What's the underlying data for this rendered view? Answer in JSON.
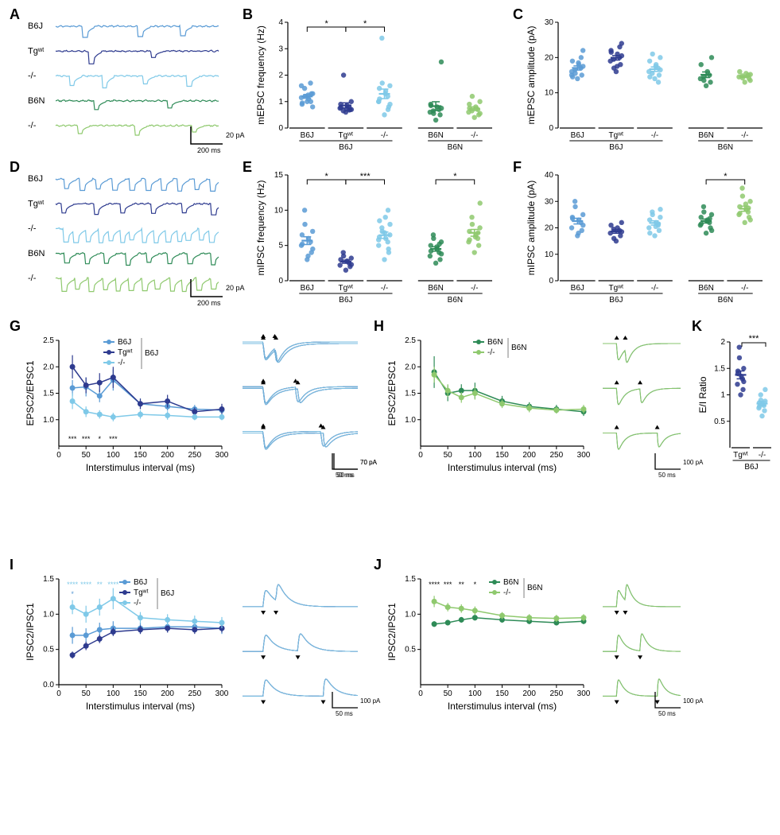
{
  "colors": {
    "b6j": "#5a9bd5",
    "tgwt": "#2e3b8f",
    "ko_j": "#7fc9e8",
    "b6n": "#2e8b57",
    "ko_n": "#8fc96e",
    "axis": "#000000",
    "bg": "#ffffff"
  },
  "panel_labels": {
    "A": "A",
    "B": "B",
    "C": "C",
    "D": "D",
    "E": "E",
    "F": "F",
    "G": "G",
    "H": "H",
    "I": "I",
    "J": "J",
    "K": "K"
  },
  "traces": {
    "labelsJ": [
      "B6J",
      "Tgʷᵗ",
      "-/-"
    ],
    "labelsN": [
      "B6N",
      "-/-"
    ],
    "scale_y_A": "20 pA",
    "scale_x_A": "200 ms",
    "scale_y_D": "20 pA",
    "scale_x_D": "200 ms"
  },
  "panelB": {
    "ylabel": "mEPSC frequency (Hz)",
    "ylim": [
      0,
      4
    ],
    "yticks": [
      0,
      1,
      2,
      3,
      4
    ],
    "groups_j": [
      "B6J",
      "Tgʷᵗ",
      "-/-"
    ],
    "groups_n": [
      "B6N",
      "-/-"
    ],
    "group_j_label": "B6J",
    "group_n_label": "B6N",
    "data": {
      "B6J_j": [
        1.0,
        1.3,
        1.6,
        1.7,
        1.1,
        0.9,
        0.8,
        1.2,
        1.5,
        1.3,
        0.95,
        1.25,
        1.0,
        1.15
      ],
      "Tgwt_j": [
        0.6,
        0.7,
        0.75,
        0.8,
        0.85,
        0.9,
        1.0,
        2.0,
        0.65,
        0.7,
        0.78,
        0.72,
        0.68
      ],
      "KO_j": [
        0.5,
        0.8,
        1.0,
        1.2,
        1.4,
        1.5,
        1.6,
        1.7,
        3.4,
        0.9,
        1.1,
        1.3,
        0.7,
        1.0
      ],
      "B6N_n": [
        0.3,
        0.5,
        0.6,
        0.7,
        0.8,
        0.9,
        2.5,
        0.55,
        0.65,
        0.75,
        0.85
      ],
      "KO_n": [
        0.4,
        0.5,
        0.6,
        0.7,
        0.8,
        0.9,
        1.0,
        1.2,
        0.65,
        0.55,
        0.75
      ]
    },
    "sig": [
      [
        "B6J_j",
        "Tgwt_j",
        "*"
      ],
      [
        "Tgwt_j",
        "KO_j",
        "*"
      ]
    ]
  },
  "panelC": {
    "ylabel": "mEPSC amplitude (pA)",
    "ylim": [
      0,
      30
    ],
    "yticks": [
      0,
      10,
      20,
      30
    ],
    "data": {
      "B6J_j": [
        14,
        15,
        16,
        17,
        18,
        19,
        22,
        15.5,
        16.5,
        17.5,
        14.5,
        18.5,
        20,
        15
      ],
      "Tgwt_j": [
        16,
        18,
        19,
        20,
        21,
        22,
        24,
        17,
        19.5,
        20.5,
        21.5,
        17.5,
        23
      ],
      "KO_j": [
        14,
        15,
        16,
        17,
        18,
        19,
        20,
        21,
        15.5,
        16.5,
        14.5,
        17.5,
        13
      ],
      "B6N_n": [
        12,
        13,
        14,
        15,
        16,
        18,
        20,
        13.5,
        14.5
      ],
      "KO_n": [
        13,
        14,
        14.5,
        15,
        15.5,
        16,
        13.5,
        14.2,
        14.8,
        15.2
      ]
    }
  },
  "panelE": {
    "ylabel": "mIPSC frequency (Hz)",
    "ylim": [
      0,
      15
    ],
    "yticks": [
      0,
      5,
      10,
      15
    ],
    "data": {
      "B6J_j": [
        3,
        4,
        5,
        5.5,
        6,
        6.5,
        7,
        8,
        10,
        4.5,
        5.2,
        3.5
      ],
      "Tgwt_j": [
        1.5,
        2,
        2.2,
        2.5,
        2.8,
        3,
        3.2,
        3.5,
        4,
        2.3
      ],
      "KO_j": [
        3,
        4,
        5,
        5.5,
        6,
        6.2,
        6.5,
        7,
        7.5,
        8,
        8.5,
        9,
        10,
        5.8,
        4.5,
        6.8
      ],
      "B6N_n": [
        2.5,
        3,
        3.5,
        4,
        4.5,
        5,
        5.5,
        6,
        6.5,
        3.8,
        4.2,
        4.8,
        5.2
      ],
      "KO_n": [
        4,
        5,
        5.5,
        6,
        6.5,
        7,
        7.5,
        8,
        9,
        11,
        5.8,
        6.2,
        6.8
      ]
    },
    "sig": [
      [
        "B6J_j",
        "Tgwt_j",
        "*"
      ],
      [
        "Tgwt_j",
        "KO_j",
        "***"
      ],
      [
        "B6N_n",
        "KO_n",
        "*"
      ]
    ]
  },
  "panelF": {
    "ylabel": "mIPSC amplitude (pA)",
    "ylim": [
      0,
      40
    ],
    "yticks": [
      0,
      10,
      20,
      30,
      40
    ],
    "data": {
      "B6J_j": [
        17,
        19,
        20,
        22,
        23,
        24,
        25,
        28,
        30,
        21,
        23.5,
        18
      ],
      "Tgwt_j": [
        15,
        17,
        18,
        19,
        20,
        21,
        22,
        16,
        19.5,
        18.5
      ],
      "KO_j": [
        17,
        19,
        20,
        21,
        22,
        23,
        24,
        25,
        26,
        27,
        18,
        20.5,
        21.5
      ],
      "B6N_n": [
        18,
        20,
        21,
        22,
        23,
        24,
        25,
        26,
        28,
        19,
        21.5,
        22.5,
        23.5
      ],
      "KO_n": [
        22,
        24,
        25,
        26,
        27,
        28,
        30,
        32,
        35,
        23,
        25.5,
        29,
        27.5
      ]
    },
    "sig": [
      [
        "B6N_n",
        "KO_n",
        "*"
      ]
    ]
  },
  "panelG": {
    "ylabel": "EPSC2/EPSC1",
    "xlabel": "Interstimulus interval (ms)",
    "xlim": [
      0,
      300
    ],
    "xticks": [
      0,
      50,
      100,
      150,
      200,
      250,
      300
    ],
    "ylim": [
      0.5,
      2.5
    ],
    "yticks": [
      1.0,
      1.5,
      2.0,
      2.5
    ],
    "x": [
      25,
      50,
      75,
      100,
      150,
      200,
      250,
      300
    ],
    "series": {
      "B6J": {
        "color": "b6j",
        "y": [
          1.6,
          1.62,
          1.45,
          1.75,
          1.3,
          1.25,
          1.2,
          1.18
        ],
        "err": [
          0.15,
          0.18,
          0.12,
          0.2,
          0.1,
          0.08,
          0.08,
          0.08
        ]
      },
      "Tgwt": {
        "color": "tgwt",
        "y": [
          2.0,
          1.65,
          1.7,
          1.8,
          1.3,
          1.35,
          1.15,
          1.2
        ],
        "err": [
          0.22,
          0.15,
          0.18,
          0.2,
          0.1,
          0.12,
          0.08,
          0.1
        ]
      },
      "KO": {
        "color": "ko_j",
        "y": [
          1.35,
          1.15,
          1.1,
          1.05,
          1.1,
          1.08,
          1.05,
          1.05
        ],
        "err": [
          0.15,
          0.1,
          0.08,
          0.08,
          0.08,
          0.08,
          0.06,
          0.06
        ]
      }
    },
    "sig_bottom": [
      "***",
      "***",
      "*",
      "***",
      "",
      "",
      "",
      ""
    ],
    "legend": [
      "B6J",
      "Tgʷᵗ",
      "-/-"
    ],
    "legend_group": "B6J",
    "inset_scale_x": "50 ms",
    "inset_scale_y": "70 pA"
  },
  "panelH": {
    "ylabel": "EPSC2/EPSC1",
    "xlabel": "Interstimulus interval (ms)",
    "xlim": [
      0,
      300
    ],
    "xticks": [
      0,
      50,
      100,
      150,
      200,
      250,
      300
    ],
    "ylim": [
      0.5,
      2.5
    ],
    "yticks": [
      1.0,
      1.5,
      2.0,
      2.5
    ],
    "x": [
      25,
      50,
      75,
      100,
      150,
      200,
      250,
      300
    ],
    "series": {
      "B6N": {
        "color": "b6n",
        "y": [
          1.9,
          1.5,
          1.55,
          1.55,
          1.35,
          1.25,
          1.2,
          1.15
        ],
        "err": [
          0.3,
          0.15,
          0.12,
          0.15,
          0.1,
          0.08,
          0.08,
          0.08
        ]
      },
      "KO": {
        "color": "ko_n",
        "y": [
          1.85,
          1.55,
          1.42,
          1.5,
          1.3,
          1.22,
          1.18,
          1.2
        ],
        "err": [
          0.15,
          0.12,
          0.1,
          0.12,
          0.08,
          0.08,
          0.06,
          0.08
        ]
      }
    },
    "legend": [
      "B6N",
      "-/-"
    ],
    "legend_group": "B6N",
    "inset_scale_x": "50 ms",
    "inset_scale_y": "100 pA"
  },
  "panelI": {
    "ylabel": "IPSC2/IPSC1",
    "xlabel": "Interstimulus interval (ms)",
    "xlim": [
      0,
      300
    ],
    "xticks": [
      0,
      50,
      100,
      150,
      200,
      250,
      300
    ],
    "ylim": [
      0,
      1.5
    ],
    "yticks": [
      0,
      0.5,
      1.0,
      1.5
    ],
    "x": [
      25,
      50,
      75,
      100,
      150,
      200,
      250,
      300
    ],
    "series": {
      "B6J": {
        "color": "b6j",
        "y": [
          0.7,
          0.7,
          0.78,
          0.8,
          0.8,
          0.82,
          0.82,
          0.8
        ],
        "err": [
          0.12,
          0.1,
          0.1,
          0.1,
          0.08,
          0.08,
          0.08,
          0.08
        ]
      },
      "Tgwt": {
        "color": "tgwt",
        "y": [
          0.42,
          0.55,
          0.65,
          0.75,
          0.78,
          0.8,
          0.78,
          0.8
        ],
        "err": [
          0.05,
          0.06,
          0.06,
          0.06,
          0.06,
          0.06,
          0.06,
          0.06
        ]
      },
      "KO": {
        "color": "ko_j",
        "y": [
          1.1,
          1.0,
          1.1,
          1.22,
          0.95,
          0.92,
          0.9,
          0.88
        ],
        "err": [
          0.1,
          0.12,
          0.12,
          0.15,
          0.08,
          0.08,
          0.08,
          0.08
        ]
      }
    },
    "sig_top_ko": [
      "****",
      "****",
      "**",
      "****",
      "",
      "",
      "",
      ""
    ],
    "sig_top_b6j": [
      "*",
      "",
      "",
      "",
      "",
      "",
      "",
      ""
    ],
    "legend": [
      "B6J",
      "Tgʷᵗ",
      "-/-"
    ],
    "legend_group": "B6J",
    "inset_scale_x": "50 ms",
    "inset_scale_y": "100 pA"
  },
  "panelJ": {
    "ylabel": "IPSC2/IPSC1",
    "xlabel": "Interstimulus interval (ms)",
    "xlim": [
      0,
      300
    ],
    "xticks": [
      0,
      50,
      100,
      150,
      200,
      250,
      300
    ],
    "ylim": [
      0,
      1.5
    ],
    "yticks": [
      0.5,
      1.0,
      1.5
    ],
    "x": [
      25,
      50,
      75,
      100,
      150,
      200,
      250,
      300
    ],
    "series": {
      "B6N": {
        "color": "b6n",
        "y": [
          0.86,
          0.88,
          0.92,
          0.95,
          0.92,
          0.9,
          0.88,
          0.9
        ],
        "err": [
          0.04,
          0.04,
          0.04,
          0.04,
          0.04,
          0.04,
          0.04,
          0.04
        ]
      },
      "KO": {
        "color": "ko_n",
        "y": [
          1.18,
          1.1,
          1.08,
          1.05,
          0.98,
          0.95,
          0.94,
          0.95
        ],
        "err": [
          0.08,
          0.06,
          0.06,
          0.06,
          0.05,
          0.05,
          0.05,
          0.05
        ]
      }
    },
    "sig_top": [
      "****",
      "***",
      "**",
      "*",
      "",
      "",
      "",
      ""
    ],
    "legend": [
      "B6N",
      "-/-"
    ],
    "legend_group": "B6N",
    "inset_scale_x": "50 ms",
    "inset_scale_y": "100 pA"
  },
  "panelK": {
    "ylabel": "E/I Ratio",
    "ylim": [
      0,
      2.0
    ],
    "yticks": [
      0.5,
      1.0,
      1.5,
      2.0
    ],
    "groups": [
      "Tgʷᵗ",
      "-/-"
    ],
    "group_label": "B6J",
    "data": {
      "Tgwt": [
        1.0,
        1.1,
        1.2,
        1.3,
        1.35,
        1.4,
        1.5,
        1.7,
        1.9,
        1.25,
        1.45
      ],
      "KO": [
        0.6,
        0.7,
        0.75,
        0.8,
        0.82,
        0.85,
        0.88,
        0.9,
        1.0,
        1.1,
        0.78
      ]
    },
    "sig": "***"
  }
}
